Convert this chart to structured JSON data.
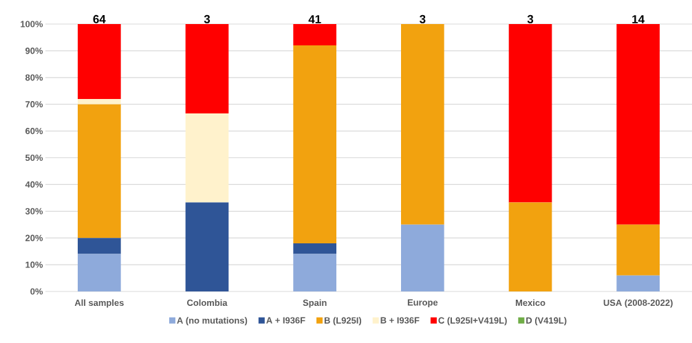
{
  "chart_data": {
    "type": "bar",
    "stacked": true,
    "categories": [
      "All samples",
      "Colombia",
      "Spain",
      "Europe",
      "Mexico",
      "USA (2008-2022)"
    ],
    "series": [
      {
        "name": "A (no mutations)",
        "color": "#8eaadb",
        "values": [
          14,
          0,
          14,
          25,
          0,
          6
        ]
      },
      {
        "name": "A + I936F",
        "color": "#2f5597",
        "values": [
          6,
          33.3,
          4,
          0,
          0,
          0
        ]
      },
      {
        "name": "B (L925I)",
        "color": "#f2a20f",
        "values": [
          50,
          0,
          74,
          75,
          33.3,
          19
        ]
      },
      {
        "name": "B + I936F",
        "color": "#fff2cc",
        "values": [
          2,
          33.3,
          0,
          0,
          0,
          0
        ]
      },
      {
        "name": "C (L925I+V419L)",
        "color": "#ff0000",
        "values": [
          28,
          33.4,
          8,
          0,
          66.7,
          75
        ]
      },
      {
        "name": "D (V419L)",
        "color": "#70ad47",
        "values": [
          0,
          0,
          0,
          0,
          0,
          0
        ]
      }
    ],
    "annotations": [
      "64",
      "3",
      "41",
      "3",
      "3",
      "14"
    ],
    "ylim": [
      0,
      100
    ],
    "yticks": [
      {
        "value": 0,
        "label": "0%"
      },
      {
        "value": 10,
        "label": "10%"
      },
      {
        "value": 20,
        "label": "20%"
      },
      {
        "value": 30,
        "label": "30%"
      },
      {
        "value": 40,
        "label": "40%"
      },
      {
        "value": 50,
        "label": "50%"
      },
      {
        "value": 60,
        "label": "60%"
      },
      {
        "value": 70,
        "label": "70%"
      },
      {
        "value": 80,
        "label": "80%"
      },
      {
        "value": 90,
        "label": "90%"
      },
      {
        "value": 100,
        "label": "100%"
      }
    ],
    "grid": "y",
    "legend": "bottom"
  }
}
